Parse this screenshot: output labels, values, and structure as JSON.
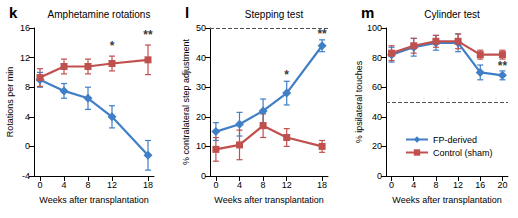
{
  "chart_data": [
    {
      "type": "line",
      "panel_label": "k",
      "title": "Amphetamine rotations",
      "x_label": "Weeks after transplantation",
      "y_label": "Rotations per min",
      "x": [
        0,
        4,
        8,
        12,
        18
      ],
      "xlim": [
        -1,
        19
      ],
      "xticks": [
        0,
        4,
        8,
        12,
        18
      ],
      "ylim": [
        -4,
        16
      ],
      "yticks": [
        -4,
        0,
        4,
        8,
        12,
        16
      ],
      "grid": false,
      "series": [
        {
          "name": "FP-derived",
          "color": "#3f7fc6",
          "marker": "diamond",
          "line_style": "solid",
          "values": [
            9,
            7.5,
            6.5,
            4,
            -1.2
          ],
          "errors": [
            1,
            1,
            1.5,
            1.5,
            2
          ]
        },
        {
          "name": "Control (sham)",
          "color": "#c0504d",
          "marker": "square",
          "line_style": "solid",
          "values": [
            9.3,
            10.8,
            10.8,
            11.2,
            11.7
          ],
          "errors": [
            1.2,
            1,
            1,
            1,
            2
          ]
        }
      ],
      "annotations": [
        {
          "text": "*",
          "x": 12,
          "y": 13.6
        },
        {
          "text": "**",
          "x": 18,
          "y": 15
        }
      ]
    },
    {
      "type": "line",
      "panel_label": "l",
      "title": "Stepping test",
      "x_label": "Weeks after transplantation",
      "y_label": "% contralateral step adjustment",
      "x": [
        0,
        4,
        8,
        12,
        18
      ],
      "xlim": [
        -1,
        19
      ],
      "xticks": [
        0,
        4,
        8,
        12,
        18
      ],
      "ylim": [
        0,
        50
      ],
      "yticks": [
        0,
        10,
        20,
        30,
        40,
        50
      ],
      "grid": false,
      "reference_lines": [
        {
          "y": 50,
          "line_style": "dashed"
        }
      ],
      "series": [
        {
          "name": "FP-derived",
          "color": "#3f7fc6",
          "marker": "diamond",
          "line_style": "solid",
          "values": [
            15,
            17.5,
            22,
            28,
            44
          ],
          "errors": [
            3,
            4,
            4,
            4,
            2
          ]
        },
        {
          "name": "Control (sham)",
          "color": "#c0504d",
          "marker": "square",
          "line_style": "solid",
          "values": [
            9,
            10.5,
            17,
            13,
            10
          ],
          "errors": [
            4,
            5,
            4,
            3,
            2
          ]
        }
      ],
      "annotations": [
        {
          "text": "*",
          "x": 12,
          "y": 34
        },
        {
          "text": "**",
          "x": 18,
          "y": 48
        }
      ]
    },
    {
      "type": "line",
      "panel_label": "m",
      "title": "Cylinder test",
      "x_label": "Weeks after transplantation",
      "y_label": "% ipsilateral touches",
      "x": [
        0,
        4,
        8,
        12,
        16,
        20
      ],
      "xlim": [
        -1,
        21
      ],
      "xticks": [
        0,
        4,
        8,
        12,
        16,
        20
      ],
      "ylim": [
        0,
        100
      ],
      "yticks": [
        0,
        20,
        40,
        60,
        80,
        100
      ],
      "grid": false,
      "legend": "bottom",
      "reference_lines": [
        {
          "y": 50,
          "line_style": "dashed"
        }
      ],
      "series": [
        {
          "name": "FP-derived",
          "color": "#3f7fc6",
          "marker": "diamond",
          "line_style": "solid",
          "values": [
            82,
            87,
            90,
            90,
            70,
            68
          ],
          "errors": [
            5,
            6,
            5,
            6,
            5,
            3
          ]
        },
        {
          "name": "Control (sham)",
          "color": "#c0504d",
          "marker": "square",
          "line_style": "solid",
          "values": [
            83,
            88,
            91,
            91,
            82,
            82
          ],
          "errors": [
            5,
            5,
            4,
            5,
            3,
            3
          ]
        }
      ],
      "annotations": [
        {
          "text": "**",
          "x": 20,
          "y": 74
        }
      ]
    }
  ]
}
